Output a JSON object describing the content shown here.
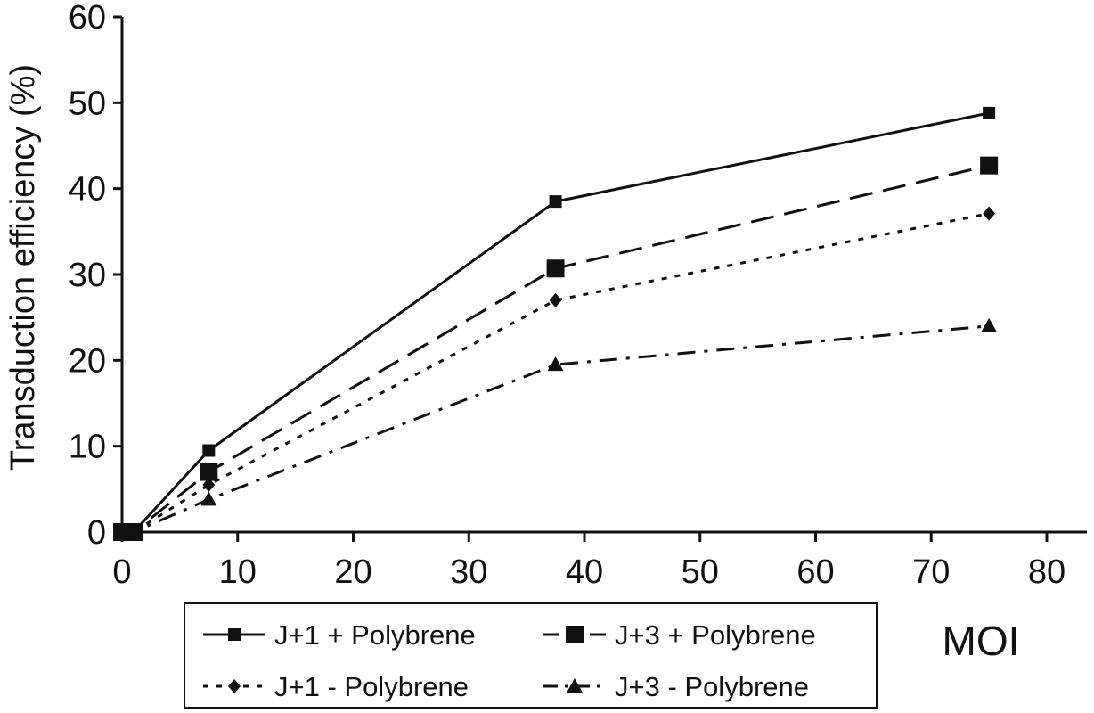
{
  "chart_data": {
    "type": "line",
    "xlabel": "MOI",
    "ylabel": "Transduction efficiency (%)",
    "xlim": [
      0,
      80
    ],
    "ylim": [
      0,
      60
    ],
    "x_ticks": [
      0,
      10,
      20,
      30,
      40,
      50,
      60,
      70,
      80
    ],
    "y_ticks": [
      0,
      10,
      20,
      30,
      40,
      50,
      60
    ],
    "grid": false,
    "legend_position": "bottom",
    "x": [
      0,
      1,
      7.5,
      37.5,
      75
    ],
    "series": [
      {
        "name": "J+1 + Polybrene",
        "values": [
          0,
          0,
          9.5,
          38.5,
          48.8
        ],
        "line_style": "solid",
        "marker": "square-small"
      },
      {
        "name": "J+3 + Polybrene",
        "values": [
          0,
          0,
          7,
          30.7,
          42.7
        ],
        "line_style": "dashed",
        "marker": "square-large"
      },
      {
        "name": "J+1 - Polybrene",
        "values": [
          0,
          0,
          5.5,
          27,
          37.1
        ],
        "line_style": "dotted",
        "marker": "diamond"
      },
      {
        "name": "J+3 - Polybrene",
        "values": [
          0,
          0,
          3.8,
          19.5,
          24
        ],
        "line_style": "dashdot",
        "marker": "triangle"
      }
    ]
  }
}
